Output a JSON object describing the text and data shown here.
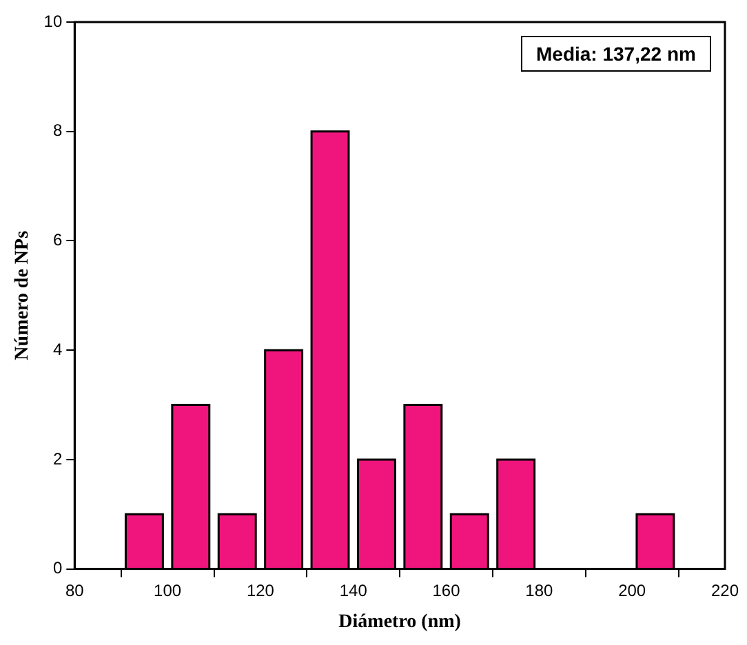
{
  "chart_data": {
    "type": "histogram",
    "xlabel": "Diámetro (nm)",
    "ylabel": "Número de NPs",
    "bins": [
      90,
      100,
      110,
      120,
      130,
      140,
      150,
      160,
      170,
      180,
      190,
      200,
      210
    ],
    "values": [
      1,
      3,
      1,
      4,
      8,
      2,
      3,
      1,
      2,
      0,
      0,
      1
    ],
    "color": "#f0157c",
    "xlim": [
      80,
      220
    ],
    "xticks": [
      80,
      100,
      120,
      140,
      160,
      180,
      200,
      220
    ],
    "ylim": [
      0,
      10
    ],
    "yticks": [
      0,
      2,
      4,
      6,
      8,
      10
    ],
    "grid": false,
    "legend": false,
    "annotations": [
      "Media: 137,22 nm"
    ]
  }
}
